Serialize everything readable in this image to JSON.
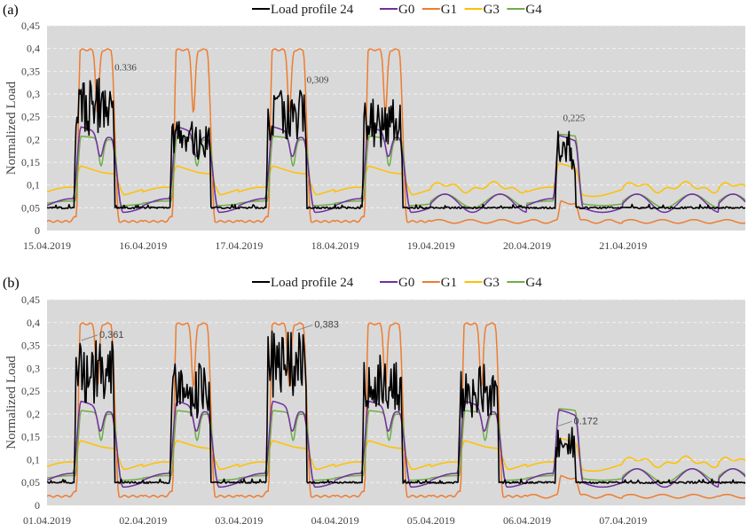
{
  "chart_data": [
    {
      "type": "line",
      "panel_label": "(a)",
      "title": "",
      "xlabel": "",
      "ylabel": "Normalized Load",
      "ylim": [
        0,
        0.45
      ],
      "yticks": [
        "0",
        "0,05",
        "0,1",
        "0,15",
        "0,2",
        "0,25",
        "0,3",
        "0,35",
        "0,4",
        "0,45"
      ],
      "ytick_values": [
        0,
        0.05,
        0.1,
        0.15,
        0.2,
        0.25,
        0.3,
        0.35,
        0.4,
        0.45
      ],
      "x_tick_labels": [
        "15.04.2019",
        "16.04.2019",
        "17.04.2019",
        "18.04.2019",
        "19.04.2019",
        "20.04.2019",
        "21.04.2019"
      ],
      "x_days": 7.3,
      "grid": "horizontal dashed",
      "legend_position": "top-center",
      "background": "#d9d9d9",
      "day_types": [
        "workday",
        "workday",
        "workday",
        "workday",
        "holiday",
        "saturday",
        "sunday"
      ],
      "series": [
        {
          "name": "Load profile 24",
          "color": "#000000",
          "key": "load",
          "day_peaks": [
            0.336,
            0.24,
            0.309,
            0.29,
            0.06,
            0.225,
            0.055
          ]
        },
        {
          "name": "G0",
          "color": "#7030a0",
          "key": "g0",
          "day_peaks": [
            0.22,
            0.22,
            0.22,
            0.22,
            0.09,
            0.2,
            0.09
          ]
        },
        {
          "name": "G1",
          "color": "#ed7d31",
          "key": "g1",
          "day_peaks": [
            0.397,
            0.397,
            0.397,
            0.397,
            0.025,
            0.062,
            0.025
          ]
        },
        {
          "name": "G3",
          "color": "#ffc000",
          "key": "g3",
          "day_peaks": [
            0.14,
            0.14,
            0.14,
            0.14,
            0.11,
            0.145,
            0.11
          ]
        },
        {
          "name": "G4",
          "color": "#70ad47",
          "key": "g4",
          "day_peaks": [
            0.203,
            0.203,
            0.203,
            0.203,
            0.085,
            0.207,
            0.085
          ]
        }
      ],
      "annotations": [
        {
          "text": "0.336",
          "day": 0.63,
          "value": 0.336,
          "style": "serif"
        },
        {
          "text": "0,309",
          "day": 2.63,
          "value": 0.309,
          "style": "serif"
        },
        {
          "text": "0,225",
          "day": 5.3,
          "value": 0.225,
          "style": "serif"
        }
      ]
    },
    {
      "type": "line",
      "panel_label": "(b)",
      "title": "",
      "xlabel": "",
      "ylabel": "Normalized Load",
      "ylim": [
        0,
        0.45
      ],
      "yticks": [
        "0",
        "0,05",
        "0,1",
        "0,15",
        "0,2",
        "0,25",
        "0,3",
        "0,35",
        "0,4",
        "0,45"
      ],
      "ytick_values": [
        0,
        0.05,
        0.1,
        0.15,
        0.2,
        0.25,
        0.3,
        0.35,
        0.4,
        0.45
      ],
      "x_tick_labels": [
        "01.04.2019",
        "02.04.2019",
        "03.04.2019",
        "04.04.2019",
        "05.04.2019",
        "06.04.2019",
        "07.04.2019"
      ],
      "x_days": 7.3,
      "grid": "horizontal dashed",
      "legend_position": "top-center",
      "background": "#d9d9d9",
      "day_types": [
        "workday",
        "workday",
        "workday",
        "workday",
        "workday",
        "saturday",
        "sunday"
      ],
      "series": [
        {
          "name": "Load profile 24",
          "color": "#000000",
          "key": "load",
          "day_peaks": [
            0.361,
            0.31,
            0.383,
            0.33,
            0.31,
            0.172,
            0.055
          ]
        },
        {
          "name": "G0",
          "color": "#7030a0",
          "key": "g0",
          "day_peaks": [
            0.22,
            0.22,
            0.22,
            0.22,
            0.22,
            0.2,
            0.09
          ]
        },
        {
          "name": "G1",
          "color": "#ed7d31",
          "key": "g1",
          "day_peaks": [
            0.397,
            0.397,
            0.397,
            0.397,
            0.397,
            0.062,
            0.025
          ]
        },
        {
          "name": "G3",
          "color": "#ffc000",
          "key": "g3",
          "day_peaks": [
            0.14,
            0.14,
            0.14,
            0.14,
            0.14,
            0.145,
            0.11
          ]
        },
        {
          "name": "G4",
          "color": "#70ad47",
          "key": "g4",
          "day_peaks": [
            0.203,
            0.203,
            0.203,
            0.203,
            0.203,
            0.207,
            0.085
          ]
        }
      ],
      "annotations": [
        {
          "text": "0,361",
          "day": 0.36,
          "value": 0.361,
          "style": "sans"
        },
        {
          "text": "0,383",
          "day": 2.6,
          "value": 0.383,
          "style": "sans"
        },
        {
          "text": "0.172",
          "day": 5.3,
          "value": 0.172,
          "style": "sans"
        }
      ]
    }
  ]
}
